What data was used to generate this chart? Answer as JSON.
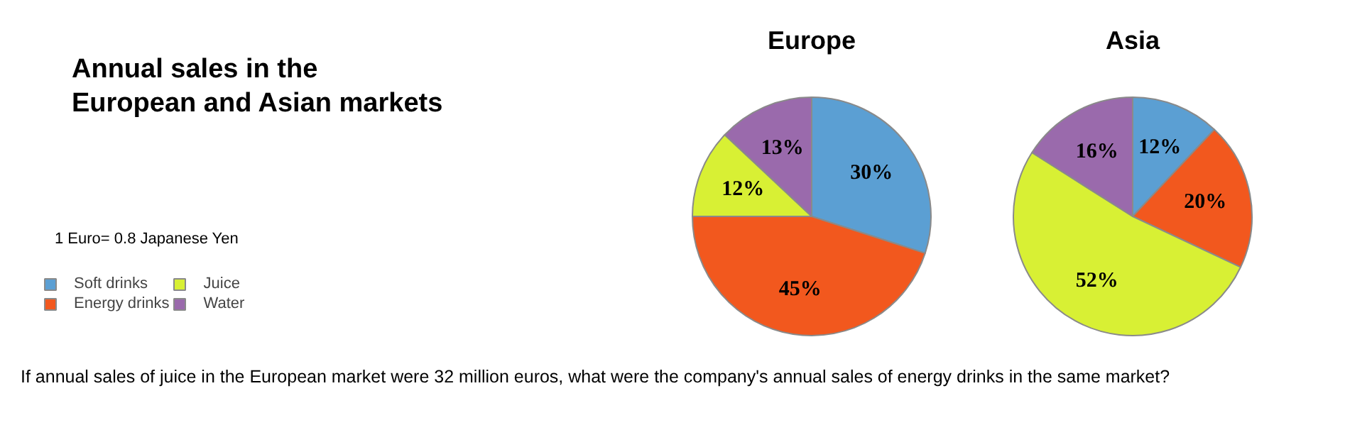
{
  "chart_data": [
    {
      "type": "other",
      "title": "Annual sales in the European and Asian markets",
      "annotations": [
        "1 Euro= 0.8 Japanese Yen",
        "If annual sales of juice in the European market were 32 million euros, what were the company's annual sales of energy drinks in the same market?"
      ]
    },
    {
      "type": "pie",
      "title": "Europe",
      "categories": [
        "Soft drinks",
        "Energy drinks",
        "Juice",
        "Water"
      ],
      "values": [
        30,
        45,
        12,
        13
      ],
      "colors": [
        "#5b9fd3",
        "#f2581e",
        "#d8f034",
        "#9a6aac"
      ],
      "value_labels": [
        "30%",
        "45%",
        "12%",
        "13%"
      ],
      "legend": "left"
    },
    {
      "type": "pie",
      "title": "Asia",
      "categories": [
        null,
        null,
        null,
        null
      ],
      "values": [
        12,
        20,
        52,
        16
      ],
      "colors": [
        "#5b9fd3",
        "#f2581e",
        "#d8f034",
        "#9a6aac"
      ],
      "value_labels": [
        "12%",
        "20%",
        "52%",
        "16%"
      ]
    }
  ]
}
